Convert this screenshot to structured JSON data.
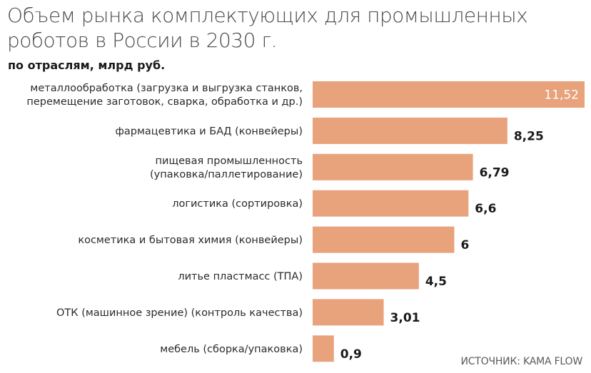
{
  "header": {
    "title_line1": "Объем рынка комплектующих для промышленных",
    "title_line2": "роботов в России в 2030 г.",
    "subtitle": "по отраслям, млрд руб."
  },
  "footer": {
    "source": "ИСТОЧНИК: KAMA FLOW"
  },
  "colors": {
    "bar": "#e8a27c",
    "bar_value_inside": "#ffffff"
  },
  "chart_data": {
    "type": "bar",
    "orientation": "horizontal",
    "title": "Объем рынка комплектующих для промышленных роботов в России в 2030 г.",
    "subtitle": "по отраслям, млрд руб.",
    "categories": [
      [
        "металлообработка (загрузка и выгрузка станков,",
        "перемещение заготовок, сварка, обработка и др.)"
      ],
      [
        "фармацевтика и БАД (конвейеры)"
      ],
      [
        "пищевая промышленность",
        "(упаковка/паллетирование)"
      ],
      [
        "логистика (сортировка)"
      ],
      [
        "косметика и бытовая химия (конвейеры)"
      ],
      [
        "литье пластмасс (ТПА)"
      ],
      [
        "ОТК (машинное зрение) (контроль качества)"
      ],
      [
        "мебель (сборка/упаковка)"
      ]
    ],
    "values": [
      11.52,
      8.25,
      6.79,
      6.6,
      6,
      4.5,
      3.01,
      0.9
    ],
    "value_labels": [
      "11,52",
      "8,25",
      "6,79",
      "6,6",
      "6",
      "4,5",
      "3,01",
      "0,9"
    ],
    "xlim": [
      0,
      11.52
    ],
    "grid": false,
    "legend": "none"
  }
}
